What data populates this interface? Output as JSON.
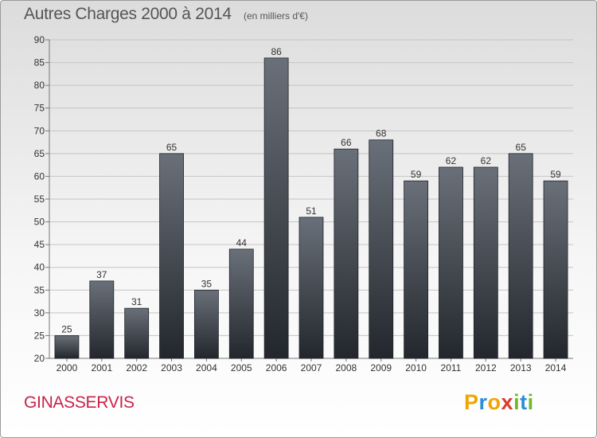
{
  "title": "Autres Charges 2000 à 2014",
  "subtitle": "(en milliers d'€)",
  "commune": "GINASSERVIS",
  "brand": {
    "letters": [
      "P",
      "r",
      "o",
      "x",
      "i",
      "t",
      "i"
    ],
    "colors": [
      "#f0a500",
      "#2a8fd6",
      "#f0a500",
      "#d63c2a",
      "#6fb82e",
      "#2a8fd6",
      "#6fb82e"
    ]
  },
  "chart_data": {
    "type": "bar",
    "categories": [
      "2000",
      "2001",
      "2002",
      "2003",
      "2004",
      "2005",
      "2006",
      "2007",
      "2008",
      "2009",
      "2010",
      "2011",
      "2012",
      "2013",
      "2014"
    ],
    "values": [
      25,
      37,
      31,
      65,
      35,
      44,
      86,
      51,
      66,
      68,
      59,
      62,
      62,
      65,
      59
    ],
    "ylim": [
      20,
      90
    ],
    "yticks": [
      20,
      25,
      30,
      35,
      40,
      45,
      50,
      55,
      60,
      65,
      70,
      75,
      80,
      85,
      90
    ],
    "grid": true,
    "bar_color": "#3a3f46"
  }
}
